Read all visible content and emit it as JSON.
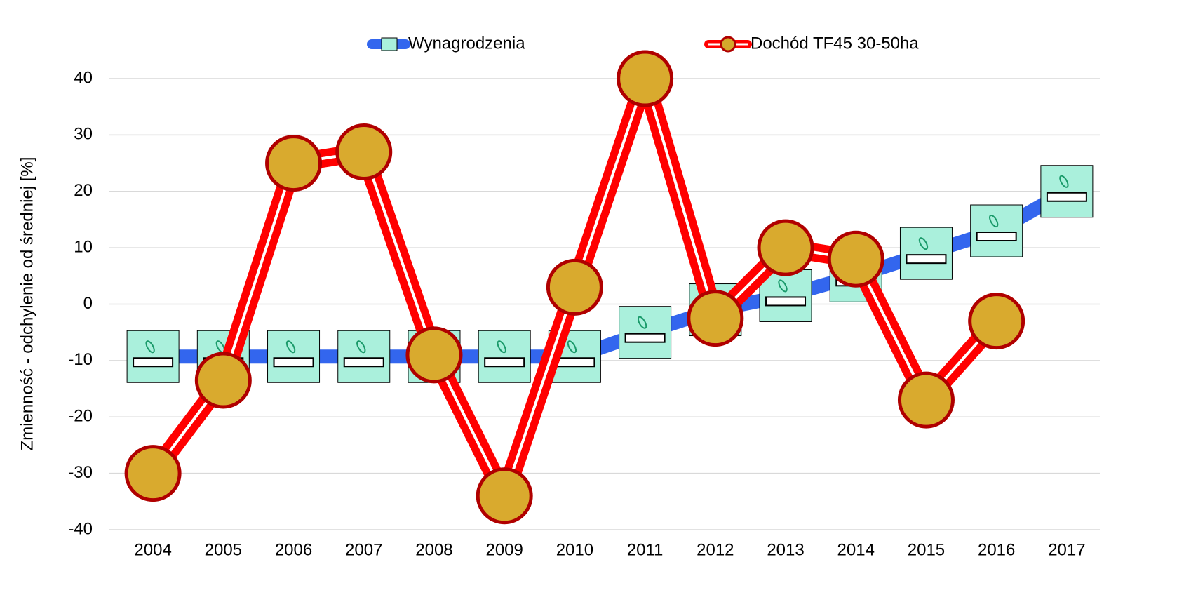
{
  "chart_data": {
    "type": "line",
    "y_label": "Zmienność - odchylenie od średniej [%]",
    "categories": [
      "2004",
      "2005",
      "2006",
      "2007",
      "2008",
      "2009",
      "2010",
      "2011",
      "2012",
      "2013",
      "2014",
      "2015",
      "2016",
      "2017"
    ],
    "series": [
      {
        "name": "Wynagrodzenia",
        "color": "#3366ee",
        "values": [
          -9.3,
          -9.3,
          -9.3,
          -9.3,
          -9.3,
          -9.3,
          -9.3,
          -5,
          -1,
          1.5,
          5,
          9,
          13,
          20
        ]
      },
      {
        "name": "Dochód TF45 30-50ha",
        "color": "#ff0000",
        "values": [
          -30,
          -13.5,
          25,
          27,
          -9,
          -34,
          3,
          40,
          -2.5,
          10,
          8,
          -17,
          -3,
          null
        ]
      }
    ],
    "ylim": [
      -40,
      40
    ],
    "yticks": [
      -40,
      -30,
      -20,
      -10,
      0,
      10,
      20,
      30,
      40
    ],
    "grid": true
  }
}
